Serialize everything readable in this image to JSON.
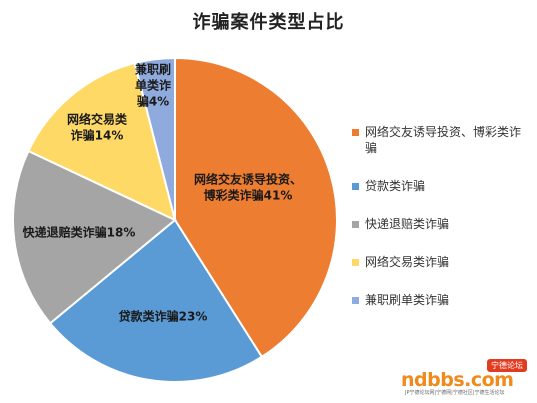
{
  "chart_data": {
    "type": "pie",
    "title": "诈骗案件类型占比",
    "slices": [
      {
        "label": "网络交友诱导投资、博彩类诈骗",
        "value": 41,
        "color": "#ED7D31",
        "data_label": [
          "网络交友诱导投资、",
          "博彩类诈骗41%"
        ]
      },
      {
        "label": "贷款类诈骗",
        "value": 23,
        "color": "#5B9BD5",
        "data_label": [
          "贷款类诈骗23%"
        ]
      },
      {
        "label": "快递退赔类诈骗",
        "value": 18,
        "color": "#A5A5A5",
        "data_label": [
          "快递退赔类诈骗18%"
        ]
      },
      {
        "label": "网络交易类诈骗",
        "value": 14,
        "color": "#FFD966",
        "data_label": [
          "网络交易类",
          "诈骗14%"
        ]
      },
      {
        "label": "兼职刷单类诈骗",
        "value": 4,
        "color": "#8FAADC",
        "data_label": [
          "兼职刷",
          "单类诈",
          "骗4%"
        ]
      }
    ],
    "legend": {
      "position": "right",
      "entries": [
        "网络交友诱导投资、博彩类诈骗",
        "贷款类诈骗",
        "快递退赔类诈骗",
        "网络交易类诈骗",
        "兼职刷单类诈骗"
      ]
    }
  },
  "watermark": {
    "main": "ndbbs.com",
    "badge": "宁德论坛",
    "sub": "JP宁德论坛网|宁德网|宁德社区|宁德生活论坛"
  }
}
